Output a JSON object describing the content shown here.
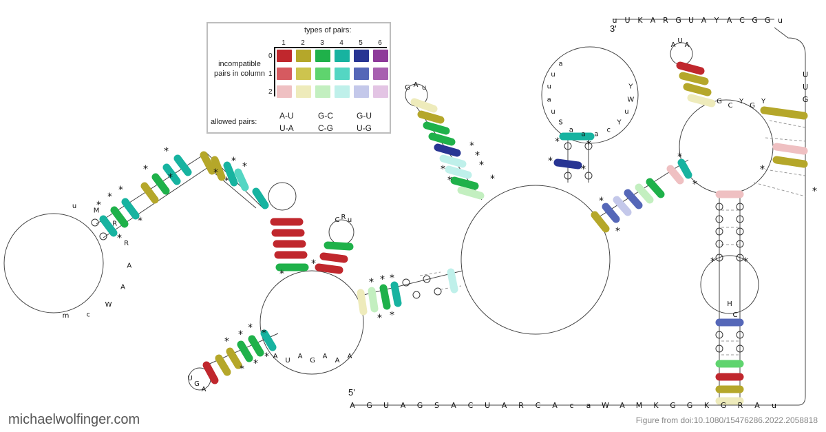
{
  "legend": {
    "title": "types of pairs:",
    "columns": [
      "1",
      "2",
      "3",
      "4",
      "5",
      "6"
    ],
    "rows": [
      "0",
      "1",
      "2"
    ],
    "row_label": "incompatible pairs in column",
    "allowed_label": "allowed pairs:",
    "pairs": [
      [
        "A-U",
        "U-A"
      ],
      [
        "G-C",
        "C-G"
      ],
      [
        "G-U",
        "U-G"
      ]
    ],
    "colors": [
      [
        "#c0272d",
        "#b5a72a",
        "#1fb14a",
        "#17b3a0",
        "#283593",
        "#8e3a9a"
      ],
      [
        "#d65a60",
        "#cdc44e",
        "#5fd46e",
        "#54d6c3",
        "#5567b8",
        "#a860b0"
      ],
      [
        "#efc0c2",
        "#eeebbb",
        "#c3efc0",
        "#bff0ea",
        "#c4c8ea",
        "#e3c4e4"
      ]
    ]
  },
  "labels": {
    "five_prime": "5'",
    "three_prime": "3'",
    "brand": "michaelwolfinger.com",
    "credit": "Figure from doi:10.1080/15476286.2022.2058818"
  },
  "sequences": {
    "bottom_strand": [
      "A",
      "G",
      "U",
      "A",
      "G",
      "S",
      "A",
      "C",
      "U",
      "A",
      "R",
      "C",
      "A",
      "c",
      "a",
      "W",
      "A",
      "M",
      "K",
      "G",
      "G",
      "K",
      "G",
      "R",
      "A",
      "u"
    ],
    "top_strand": [
      "u",
      "U",
      "K",
      "A",
      "R",
      "G",
      "U",
      "A",
      "Y",
      "A",
      "C",
      "G",
      "G",
      "u"
    ],
    "right_strand": [
      "U",
      "U",
      "G"
    ],
    "left_loop": [
      "m",
      "c",
      "W",
      "A",
      "A",
      "R",
      "R",
      "M",
      "u"
    ],
    "top_loop": [
      "Y",
      "W",
      "u",
      "Y",
      "c",
      "a",
      "a",
      "a",
      "S",
      "u",
      "a",
      "u",
      "u",
      "a"
    ],
    "hairpin_top_left": [
      "G",
      "A",
      "u"
    ],
    "hairpin_mid": [
      "C",
      "R",
      "u"
    ],
    "hairpin_bottom": [
      "U",
      "G",
      "A"
    ],
    "hairpin_right": [
      "A",
      "U",
      "A"
    ],
    "mid_loop": [
      "A",
      "U",
      "A",
      "G",
      "A",
      "A",
      "A"
    ],
    "multiloop_right": [
      "G",
      "C",
      "Y",
      "G",
      "Y"
    ],
    "internal_right": [
      "H",
      "C"
    ]
  }
}
